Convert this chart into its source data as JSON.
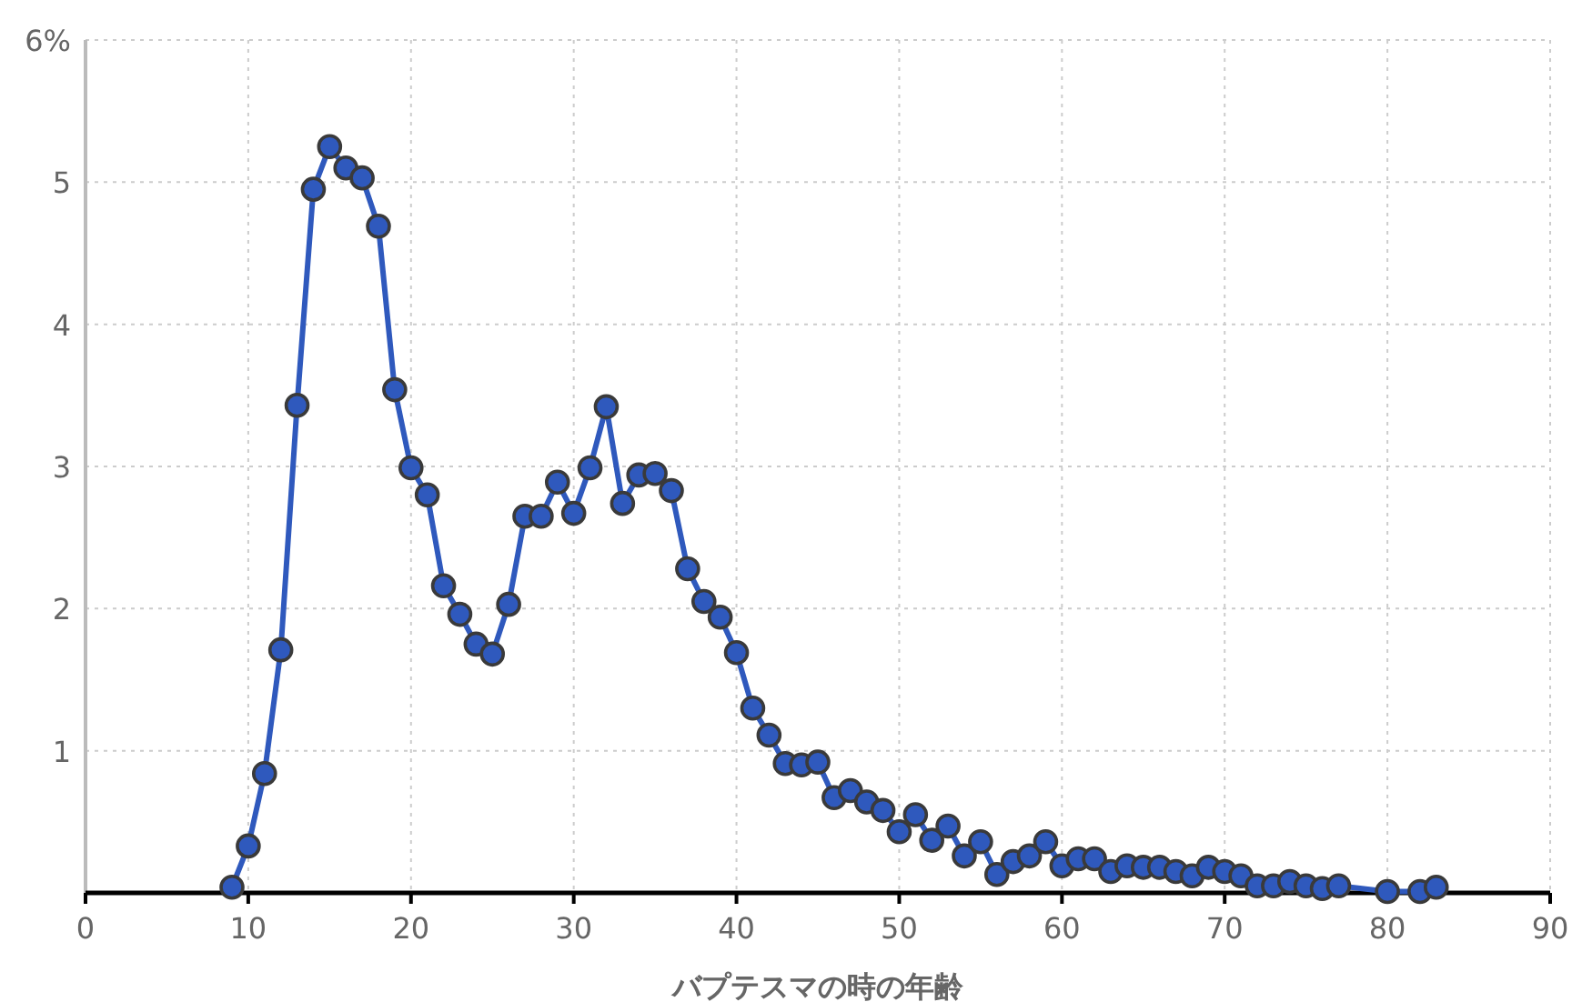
{
  "chart_data": {
    "type": "line",
    "xlabel": "バプテスマの時の年齢",
    "xlim": [
      0,
      90
    ],
    "xticks": [
      0,
      10,
      20,
      30,
      40,
      50,
      60,
      70,
      80,
      90
    ],
    "ylim": [
      0,
      6
    ],
    "yticks": [
      {
        "value": 1,
        "label": "1"
      },
      {
        "value": 2,
        "label": "2"
      },
      {
        "value": 3,
        "label": "3"
      },
      {
        "value": 4,
        "label": "4"
      },
      {
        "value": 5,
        "label": "5"
      },
      {
        "value": 6,
        "label": "6%"
      }
    ],
    "grid": true,
    "marker": "circle",
    "line_style": "solid",
    "series": [
      {
        "color": "#2f59bd",
        "x": [
          9,
          10,
          11,
          12,
          13,
          14,
          15,
          16,
          17,
          18,
          19,
          20,
          21,
          22,
          23,
          24,
          25,
          26,
          27,
          28,
          29,
          30,
          31,
          32,
          33,
          34,
          35,
          36,
          37,
          38,
          39,
          40,
          41,
          42,
          43,
          44,
          45,
          46,
          47,
          48,
          49,
          50,
          51,
          52,
          53,
          54,
          55,
          56,
          57,
          58,
          59,
          60,
          61,
          62,
          63,
          64,
          65,
          66,
          67,
          68,
          69,
          70,
          71,
          72,
          73,
          74,
          75,
          76,
          77,
          80,
          82,
          83
        ],
        "values": [
          0.04,
          0.33,
          0.84,
          1.71,
          3.43,
          4.95,
          5.25,
          5.1,
          5.03,
          4.69,
          3.54,
          2.99,
          2.8,
          2.16,
          1.96,
          1.75,
          1.68,
          2.03,
          2.65,
          2.65,
          2.89,
          2.67,
          2.99,
          3.42,
          2.74,
          2.94,
          2.95,
          2.83,
          2.28,
          2.05,
          1.94,
          1.69,
          1.3,
          1.11,
          0.91,
          0.9,
          0.92,
          0.67,
          0.72,
          0.64,
          0.58,
          0.43,
          0.55,
          0.37,
          0.47,
          0.26,
          0.36,
          0.13,
          0.22,
          0.26,
          0.36,
          0.19,
          0.24,
          0.24,
          0.15,
          0.19,
          0.18,
          0.18,
          0.15,
          0.12,
          0.18,
          0.15,
          0.12,
          0.05,
          0.05,
          0.08,
          0.05,
          0.03,
          0.05,
          0.01,
          0.01,
          0.04
        ]
      }
    ]
  }
}
